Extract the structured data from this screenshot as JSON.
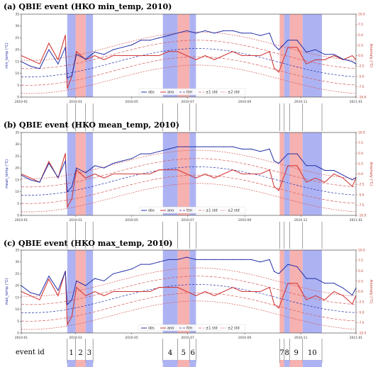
{
  "colors": {
    "obs": "#2531a8",
    "ano": "#d23a3a",
    "band_blue": "#9fa6f0",
    "band_red": "#f5a3a3",
    "std": "#d65a5a",
    "axis_right": "#c0392b",
    "axis_left": "#1f2a9c"
  },
  "x_ticks": [
    "2010-01",
    "2010-03",
    "2010-05",
    "2010-07",
    "2010-09",
    "2010-11",
    "2011-01"
  ],
  "legend": [
    "obs",
    "ano",
    "ltm",
    "±1 std",
    "±2 std"
  ],
  "event_row": {
    "label": "event id",
    "ids": [
      "1",
      "2",
      "3",
      "4",
      "5",
      "6",
      "7",
      "8",
      "9",
      "10"
    ]
  },
  "chart_data": [
    {
      "type": "line",
      "title": "(a)  QBIE event (HKO min_temp, 2010)",
      "ylabel": "min_temp (°C)",
      "ylabel_right": "Anomaly (°C)",
      "yticks": [
        "0",
        "5",
        "10",
        "15",
        "20",
        "25",
        "30",
        "35"
      ],
      "yticks_right": [
        "-10.0",
        "-7.5",
        "-5.0",
        "-2.5",
        "0.0",
        "2.5",
        "5.0",
        "7.5",
        "10.0"
      ],
      "ylim": [
        0,
        35
      ],
      "ylim_right": [
        -10,
        10
      ],
      "series": [
        {
          "name": "obs",
          "x": [
            0,
            10,
            20,
            30,
            40,
            48,
            50,
            55,
            60,
            70,
            80,
            90,
            100,
            110,
            120,
            130,
            140,
            150,
            160,
            170,
            180,
            190,
            200,
            210,
            220,
            230,
            240,
            250,
            260,
            270,
            275,
            280,
            290,
            300,
            310,
            320,
            330,
            340,
            350,
            360,
            364
          ],
          "y": [
            15,
            13,
            12,
            20,
            14,
            21,
            8,
            9,
            18,
            16,
            19,
            18,
            20,
            21,
            22,
            24,
            24,
            25,
            26,
            27,
            28,
            27,
            28,
            27,
            28,
            28,
            27,
            27,
            26,
            27,
            22,
            20,
            24,
            24,
            19,
            20,
            18,
            18,
            16,
            15,
            14
          ]
        },
        {
          "name": "ano",
          "x": [
            0,
            10,
            20,
            30,
            40,
            48,
            50,
            55,
            60,
            70,
            80,
            90,
            100,
            110,
            120,
            130,
            140,
            150,
            160,
            170,
            180,
            190,
            200,
            210,
            220,
            230,
            240,
            250,
            260,
            270,
            275,
            280,
            290,
            300,
            310,
            320,
            330,
            340,
            350,
            360,
            364
          ],
          "y": [
            0,
            -1,
            -2,
            3,
            -1,
            5,
            -8,
            -5,
            1,
            -1,
            0,
            -1,
            0,
            0,
            0,
            0,
            0,
            0,
            1,
            1,
            0,
            -1,
            0,
            -1,
            0,
            1,
            0,
            0,
            0,
            1,
            -3,
            -4,
            2,
            2,
            -2,
            -1,
            -1,
            0,
            -1,
            0,
            -1
          ]
        }
      ]
    },
    {
      "type": "line",
      "title": "(b)  QBIE event (HKO mean_temp, 2010)",
      "ylabel": "mean_temp (°C)",
      "ylabel_right": "Anomaly (°C)",
      "yticks": [
        "0",
        "5",
        "10",
        "15",
        "20",
        "25",
        "30",
        "35"
      ],
      "yticks_right": [
        "-10.0",
        "-7.5",
        "-5.0",
        "-2.5",
        "0.0",
        "2.5",
        "5.0",
        "7.5",
        "10.0"
      ],
      "ylim": [
        0,
        35
      ],
      "ylim_right": [
        -10,
        10
      ],
      "series": [
        {
          "name": "obs",
          "x": [
            0,
            10,
            20,
            30,
            40,
            48,
            50,
            55,
            60,
            70,
            80,
            90,
            100,
            110,
            120,
            130,
            140,
            150,
            160,
            170,
            180,
            190,
            200,
            210,
            220,
            230,
            240,
            250,
            260,
            270,
            275,
            280,
            290,
            300,
            310,
            320,
            330,
            340,
            350,
            360,
            364
          ],
          "y": [
            17,
            15,
            14,
            22,
            16,
            23,
            10,
            12,
            20,
            18,
            21,
            20,
            22,
            23,
            24,
            26,
            26,
            27,
            28,
            29,
            29,
            29,
            29,
            29,
            29,
            29,
            28,
            28,
            27,
            28,
            23,
            22,
            26,
            26,
            21,
            21,
            19,
            19,
            17,
            15,
            16
          ]
        },
        {
          "name": "ano",
          "x": [
            0,
            10,
            20,
            30,
            40,
            48,
            50,
            55,
            60,
            70,
            80,
            90,
            100,
            110,
            120,
            130,
            140,
            150,
            160,
            170,
            180,
            190,
            200,
            210,
            220,
            230,
            240,
            250,
            260,
            270,
            275,
            280,
            290,
            300,
            310,
            320,
            330,
            340,
            350,
            360,
            364
          ],
          "y": [
            0,
            -1,
            -2,
            3,
            -1,
            5,
            -8,
            -6,
            1,
            -1,
            0,
            -1,
            0,
            0,
            0,
            0,
            0,
            1,
            1,
            1,
            0,
            -1,
            0,
            -1,
            0,
            1,
            0,
            0,
            0,
            1,
            -3,
            -4,
            2,
            2,
            -2,
            -1,
            -2,
            0,
            -1,
            -3,
            -1
          ]
        }
      ]
    },
    {
      "type": "line",
      "title": "(c)  QBIE event (HKO max_temp, 2010)",
      "ylabel": "max_temp (°C)",
      "ylabel_right": "Anomaly (°C)",
      "yticks": [
        "0",
        "5",
        "10",
        "15",
        "20",
        "25",
        "30",
        "35"
      ],
      "yticks_right": [
        "-10.0",
        "-7.5",
        "-5.0",
        "-2.5",
        "0.0",
        "2.5",
        "5.0",
        "7.5",
        "10.0"
      ],
      "ylim": [
        0,
        35
      ],
      "ylim_right": [
        -10,
        10
      ],
      "series": [
        {
          "name": "obs",
          "x": [
            0,
            10,
            20,
            30,
            40,
            48,
            50,
            55,
            60,
            70,
            80,
            90,
            100,
            110,
            120,
            130,
            140,
            150,
            160,
            170,
            180,
            190,
            200,
            210,
            220,
            230,
            240,
            250,
            260,
            270,
            275,
            280,
            290,
            300,
            310,
            320,
            330,
            340,
            350,
            360,
            364
          ],
          "y": [
            20,
            17,
            16,
            24,
            18,
            26,
            12,
            14,
            22,
            20,
            23,
            22,
            25,
            26,
            27,
            29,
            29,
            30,
            31,
            31,
            32,
            31,
            31,
            31,
            31,
            31,
            31,
            31,
            30,
            31,
            26,
            25,
            29,
            28,
            23,
            23,
            21,
            21,
            19,
            16,
            19
          ]
        },
        {
          "name": "ano",
          "x": [
            0,
            10,
            20,
            30,
            40,
            48,
            50,
            55,
            60,
            70,
            80,
            90,
            100,
            110,
            120,
            130,
            140,
            150,
            160,
            170,
            180,
            190,
            200,
            210,
            220,
            230,
            240,
            250,
            260,
            270,
            275,
            280,
            290,
            300,
            310,
            320,
            330,
            340,
            350,
            360,
            364
          ],
          "y": [
            0,
            -1,
            -2,
            3,
            -1,
            5,
            -8,
            -6,
            1,
            -1,
            0,
            -1,
            0,
            0,
            0,
            0,
            0,
            1,
            1,
            1,
            0,
            -1,
            0,
            -1,
            0,
            1,
            0,
            0,
            0,
            1,
            -3,
            -4,
            2,
            2,
            -2,
            -1,
            -2,
            0,
            -1,
            -3,
            -1
          ]
        }
      ]
    }
  ],
  "events": [
    {
      "id": "1",
      "start": 50,
      "end": 59,
      "color": "blue"
    },
    {
      "id": "2",
      "start": 59,
      "end": 70,
      "color": "red"
    },
    {
      "id": "3",
      "start": 70,
      "end": 78,
      "color": "blue"
    },
    {
      "id": "4",
      "start": 154,
      "end": 170,
      "color": "blue"
    },
    {
      "id": "5",
      "start": 170,
      "end": 183,
      "color": "red"
    },
    {
      "id": "6",
      "start": 183,
      "end": 190,
      "color": "blue"
    },
    {
      "id": "7",
      "start": 281,
      "end": 286,
      "color": "red"
    },
    {
      "id": "8",
      "start": 286,
      "end": 292,
      "color": "blue"
    },
    {
      "id": "9",
      "start": 292,
      "end": 306,
      "color": "red"
    },
    {
      "id": "10",
      "start": 306,
      "end": 327,
      "color": "blue"
    }
  ]
}
